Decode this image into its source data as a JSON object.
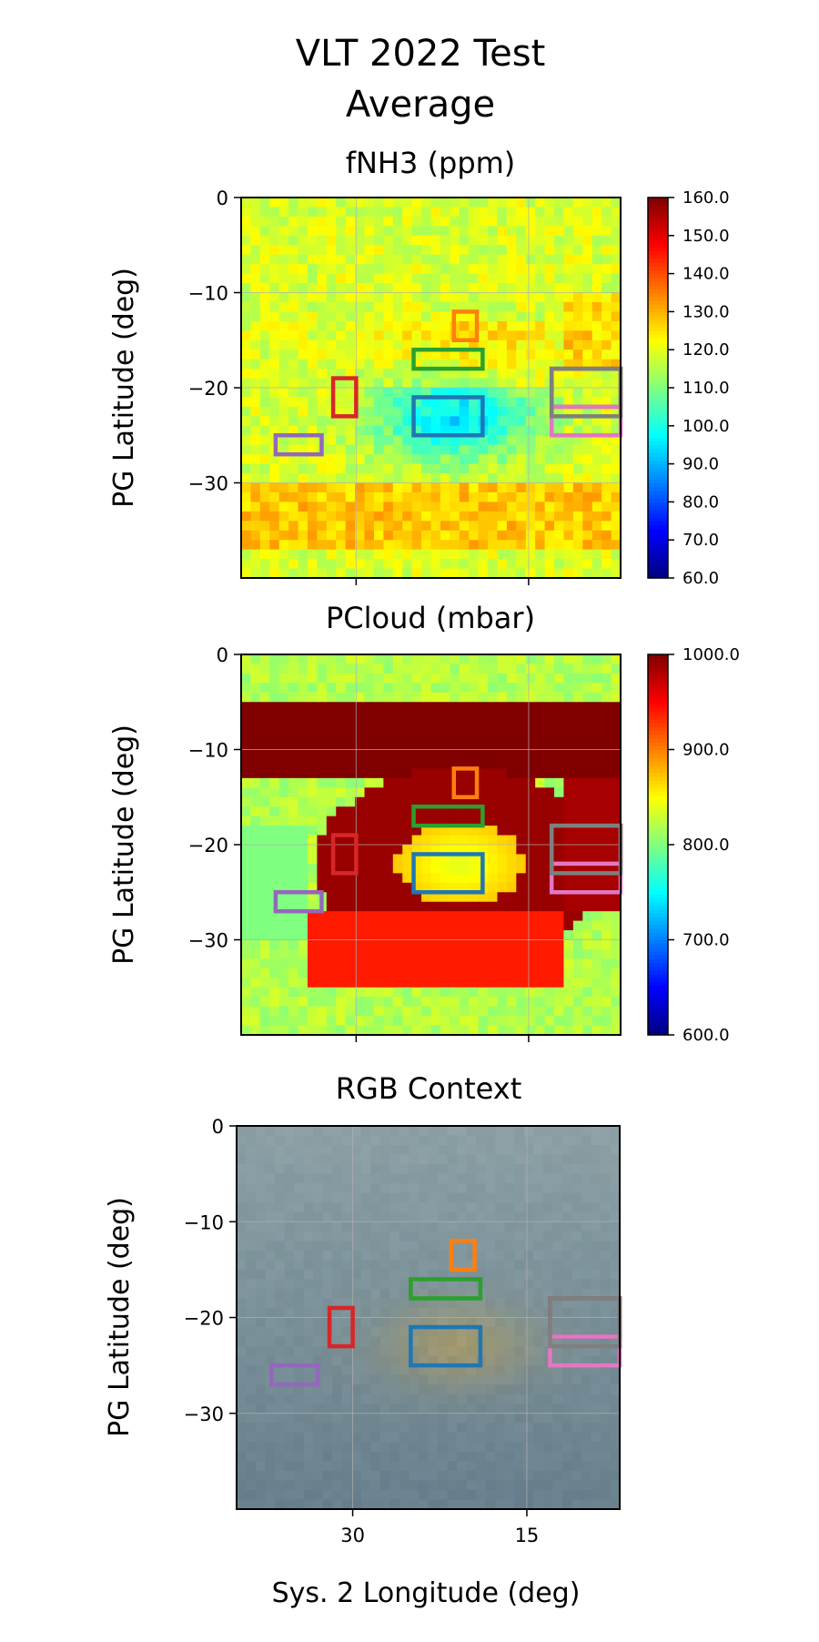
{
  "suptitle": [
    "VLT 2022 Test",
    "Average"
  ],
  "colors": {
    "regions": [
      "#1f77b4",
      "#ff7f0e",
      "#2ca02c",
      "#d62728",
      "#9467bd",
      "#8c564b",
      "#e377c2",
      "#7f7f7f"
    ]
  },
  "chart_data": [
    {
      "type": "heatmap",
      "title": "fNH3 (ppm)",
      "ylabel": "PG Latitude (deg)",
      "xlabel": "",
      "xlim": [
        40,
        7
      ],
      "ylim": [
        -40,
        0
      ],
      "grid": true,
      "yticks": [
        0,
        -10,
        -20,
        -30
      ],
      "ytick_labels": [
        "0",
        "−10",
        "−20",
        "−30"
      ],
      "xticks": [
        30,
        15
      ],
      "xtick_labels": [
        "",
        ""
      ],
      "colorbar": {
        "range": [
          60,
          160
        ],
        "ticks": [
          60,
          70,
          80,
          90,
          100,
          110,
          120,
          130,
          140,
          150,
          160
        ],
        "tick_labels": [
          "60.0",
          "70.0",
          "80.0",
          "90.0",
          "100.0",
          "110.0",
          "120.0",
          "130.0",
          "140.0",
          "150.0",
          "160.0"
        ],
        "colormap": "jet"
      }
    },
    {
      "type": "heatmap",
      "title": "PCloud (mbar)",
      "ylabel": "PG Latitude (deg)",
      "xlabel": "",
      "xlim": [
        40,
        7
      ],
      "ylim": [
        -40,
        0
      ],
      "grid": true,
      "yticks": [
        0,
        -10,
        -20,
        -30
      ],
      "ytick_labels": [
        "0",
        "−10",
        "−20",
        "−30"
      ],
      "xticks": [
        30,
        15
      ],
      "xtick_labels": [
        "",
        ""
      ],
      "colorbar": {
        "range": [
          600,
          1000
        ],
        "ticks": [
          600,
          700,
          800,
          900,
          1000
        ],
        "tick_labels": [
          "600.0",
          "700.0",
          "800.0",
          "900.0",
          "1000.0"
        ],
        "colormap": "jet"
      }
    },
    {
      "type": "heatmap",
      "title": "RGB Context",
      "ylabel": "PG Latitude (deg)",
      "xlabel": "Sys. 2 Longitude (deg)",
      "xlim": [
        40,
        7
      ],
      "ylim": [
        -40,
        0
      ],
      "grid": true,
      "yticks": [
        0,
        -10,
        -20,
        -30
      ],
      "ytick_labels": [
        "0",
        "−10",
        "−20",
        "−30"
      ],
      "xticks": [
        30,
        15
      ],
      "xtick_labels": [
        "30",
        "15"
      ]
    }
  ],
  "regions": [
    {
      "color_index": 0,
      "lon": [
        25,
        19
      ],
      "lat": [
        -25,
        -21
      ]
    },
    {
      "color_index": 1,
      "lon": [
        21.5,
        19.5
      ],
      "lat": [
        -15,
        -12
      ]
    },
    {
      "color_index": 2,
      "lon": [
        25,
        19
      ],
      "lat": [
        -18,
        -16
      ]
    },
    {
      "color_index": 3,
      "lon": [
        32,
        30
      ],
      "lat": [
        -23,
        -19
      ]
    },
    {
      "color_index": 4,
      "lon": [
        37,
        33
      ],
      "lat": [
        -27,
        -25
      ]
    },
    {
      "color_index": 5,
      "lon": [
        13,
        7
      ],
      "lat": [
        -22,
        -18
      ]
    },
    {
      "color_index": 6,
      "lon": [
        13,
        7
      ],
      "lat": [
        -25,
        -22
      ]
    },
    {
      "color_index": 7,
      "lon": [
        13,
        7
      ],
      "lat": [
        -23,
        -18
      ]
    }
  ]
}
